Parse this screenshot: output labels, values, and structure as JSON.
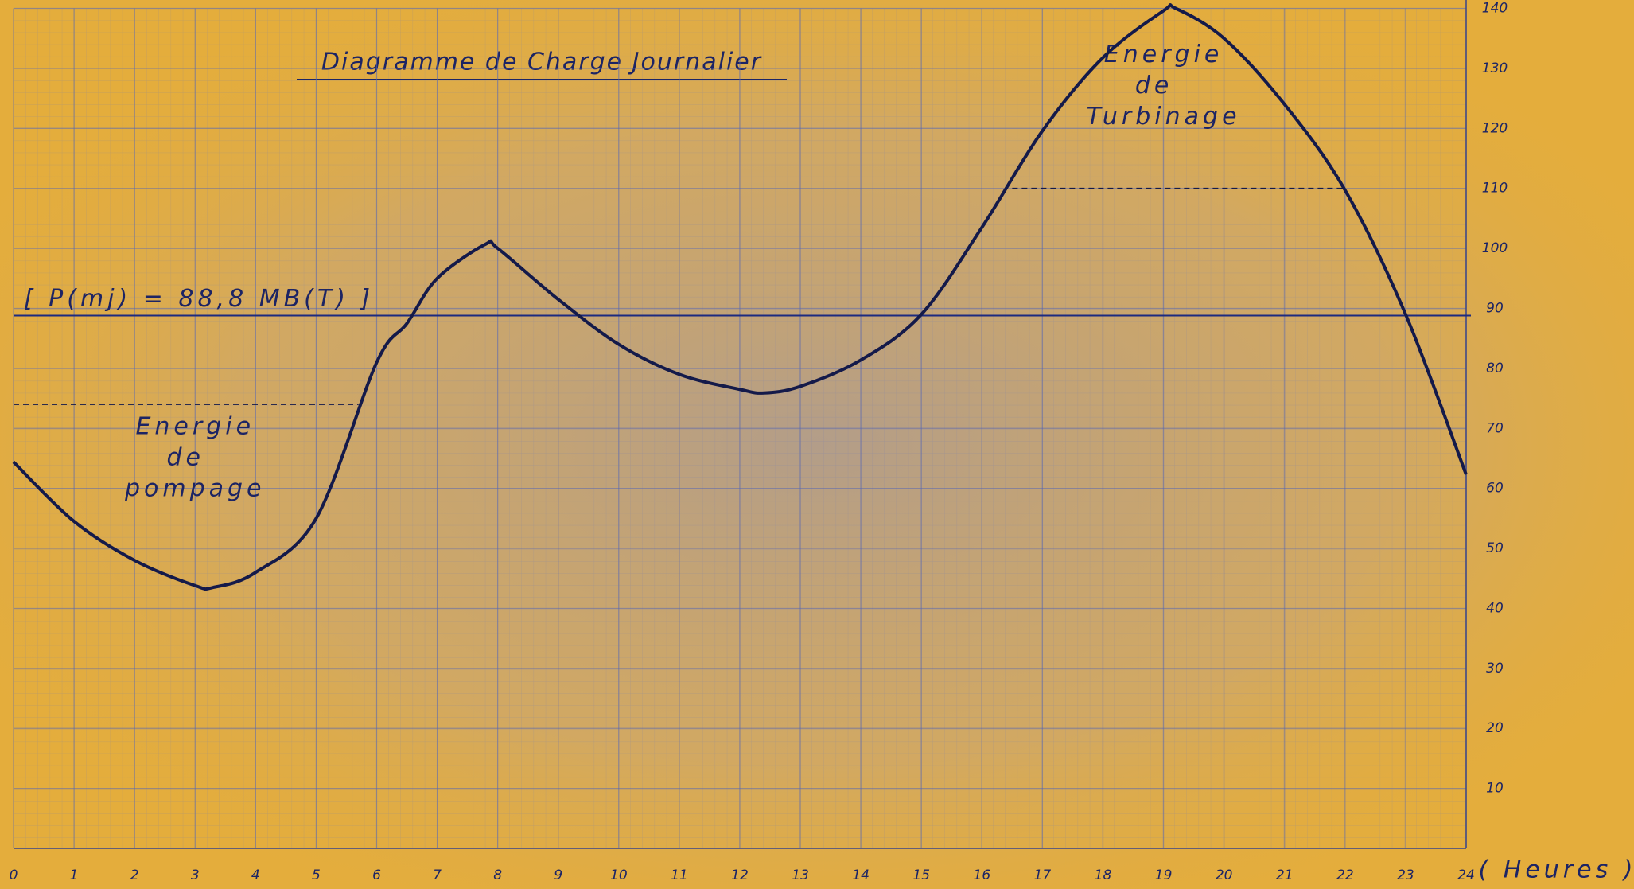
{
  "chart_data": {
    "type": "line",
    "title": "Diagramme de Charge Journalier",
    "x_label": "( Heures )",
    "x": [
      0,
      1,
      2,
      3,
      3.3,
      4,
      5,
      6,
      6.5,
      7,
      7.8,
      8,
      9,
      10,
      11,
      12,
      12.4,
      13,
      14,
      15,
      16,
      17,
      18,
      19,
      19.2,
      20,
      21,
      22,
      23,
      24
    ],
    "values": [
      64.4,
      54.5,
      48,
      43.8,
      43.5,
      46,
      55,
      81,
      87.5,
      95,
      100.7,
      100,
      91.5,
      84,
      79,
      76.5,
      75.9,
      77,
      81.4,
      89,
      103.5,
      119.6,
      131.8,
      139.6,
      140,
      135,
      124,
      109.7,
      89,
      62.3
    ],
    "color": "#141a4a",
    "xlim": [
      0,
      24
    ],
    "ylim": [
      0,
      140
    ],
    "xticks": [
      0,
      1,
      2,
      3,
      4,
      5,
      6,
      7,
      8,
      9,
      10,
      11,
      12,
      13,
      14,
      15,
      16,
      17,
      18,
      19,
      20,
      21,
      22,
      23,
      24
    ],
    "yticks": [
      10,
      20,
      30,
      40,
      50,
      60,
      70,
      80,
      90,
      100,
      110,
      120,
      130,
      140
    ],
    "grid": true,
    "mean_line": {
      "value": 88.8,
      "label": "[ P(mj) = 88,8 MB(T) ]"
    },
    "reference_lines": [
      {
        "y": 74,
        "x": [
          0,
          5.7
        ]
      },
      {
        "y": 110,
        "x": [
          16.5,
          22
        ]
      }
    ],
    "annotations": [
      {
        "lines": [
          "Energie",
          "de",
          "pompage"
        ],
        "x": 3.0,
        "y": 65
      },
      {
        "lines": [
          "Energie",
          "de",
          "Turbinage"
        ],
        "x": 19.0,
        "y": 127
      }
    ]
  }
}
